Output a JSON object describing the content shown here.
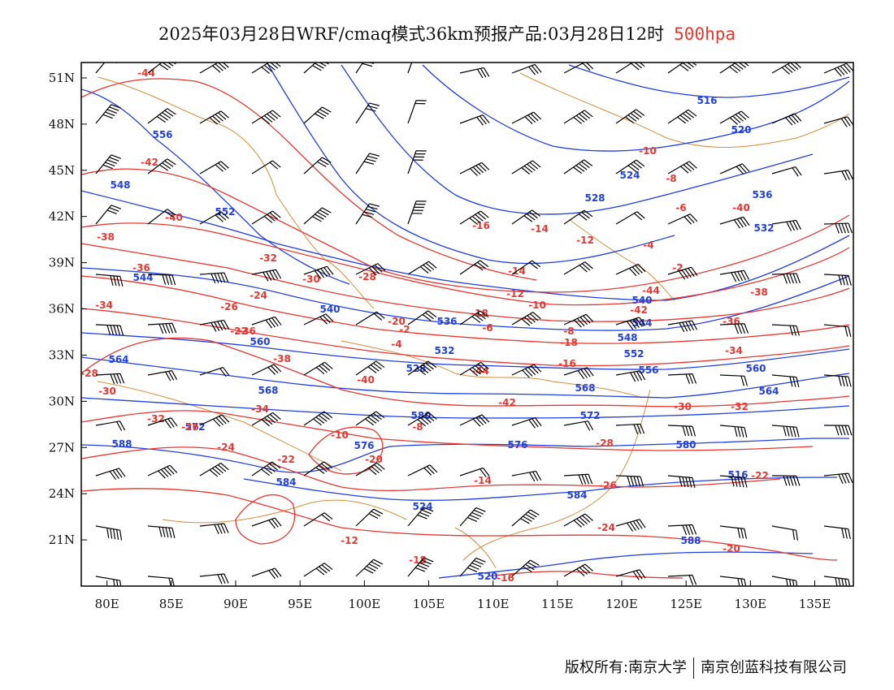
{
  "title": {
    "main": "2025年03月28日WRF/cmaq模式36km预报产品:03月28日12时",
    "level": "500hpa"
  },
  "colors": {
    "height_contour": "#1f3fe0",
    "temperature_contour": "#e8372f",
    "coastline_border": "#d98c3a",
    "wind_barb": "#000000",
    "frame": "#000000"
  },
  "axes": {
    "lon_ticks": [
      "80E",
      "85E",
      "90E",
      "95E",
      "100E",
      "105E",
      "110E",
      "115E",
      "120E",
      "125E",
      "130E",
      "135E"
    ],
    "lat_ticks": [
      "51N",
      "48N",
      "45N",
      "42N",
      "39N",
      "36N",
      "33N",
      "30N",
      "27N",
      "24N",
      "21N"
    ],
    "lon_range": [
      78,
      138
    ],
    "lat_range": [
      18,
      52
    ]
  },
  "height_labels": [
    "516",
    "520",
    "524",
    "528",
    "532",
    "536",
    "540",
    "544",
    "548",
    "552",
    "556",
    "560",
    "564",
    "568",
    "572",
    "576",
    "580",
    "584",
    "588"
  ],
  "temperature_labels": [
    "-44",
    "-42",
    "-40",
    "-38",
    "-36",
    "-34",
    "-32",
    "-30",
    "-28",
    "-26",
    "-24",
    "-22",
    "-20",
    "-18",
    "-16",
    "-14",
    "-12",
    "-10",
    "-8",
    "-6",
    "-4",
    "-2"
  ],
  "credit": {
    "left": "版权所有:南京大学",
    "right": "南京创蓝科技有限公司"
  }
}
